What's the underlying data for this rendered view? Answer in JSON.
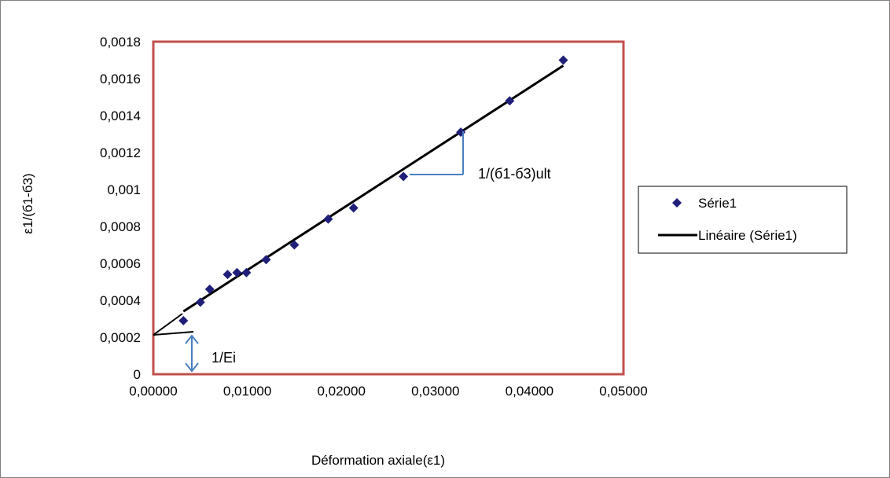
{
  "chart_data": {
    "type": "scatter",
    "title": "",
    "xlabel": "Déformation axiale(ε1)",
    "ylabel": "ε1/(б1-б3)",
    "xlim": [
      0,
      0.05
    ],
    "ylim": [
      0,
      0.0018
    ],
    "x_ticks": [
      "0,00000",
      "0,01000",
      "0,02000",
      "0,03000",
      "0,04000",
      "0,05000"
    ],
    "y_ticks": [
      "0",
      "0,0002",
      "0,0004",
      "0,0006",
      "0,0008",
      "0,001",
      "0,0012",
      "0,0014",
      "0,0016",
      "0,0018"
    ],
    "series": [
      {
        "name": "Série1",
        "marker": "diamond",
        "color": "#1f1f7a",
        "x": [
          0.0032,
          0.005,
          0.006,
          0.0079,
          0.0089,
          0.0099,
          0.012,
          0.015,
          0.0186,
          0.0213,
          0.0266,
          0.0327,
          0.0379,
          0.0436
        ],
        "y": [
          0.00029,
          0.00039,
          0.00046,
          0.00054,
          0.00055,
          0.00055,
          0.00062,
          0.0007,
          0.00084,
          0.0009,
          0.00107,
          0.00131,
          0.00148,
          0.0017
        ]
      }
    ],
    "trendline": {
      "name": "Linéaire (Série1)",
      "color": "#000000",
      "x": [
        0.0032,
        0.0436
      ],
      "y": [
        0.00034,
        0.00167
      ]
    },
    "legend": {
      "position": "right",
      "entries": [
        "Série1",
        "Linéaire (Série1)"
      ]
    },
    "plot_border_color": "#c0504d",
    "annotation_color": "#4a7fc1",
    "annotations": {
      "slope_label": "1/(б1-б3)ult",
      "intercept_label": "1/Ei"
    },
    "grid": false
  }
}
